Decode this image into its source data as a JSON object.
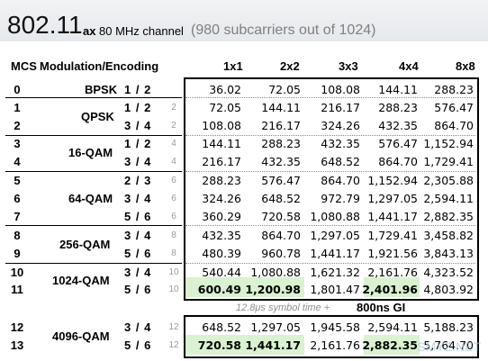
{
  "header": {
    "main": "802.11",
    "suffix": "ax",
    "channel_label": "80 MHz channel",
    "subcarriers": "(980 subcarriers out of 1024)"
  },
  "table": {
    "mcs_col": "MCS",
    "modulation_col": "Modulation/Encoding",
    "stream_cols": [
      "1x1",
      "2x2",
      "3x3",
      "4x4",
      "8x8"
    ],
    "rows": [
      {
        "mcs": "0",
        "modulation": "BPSK",
        "rate": "1 / 2",
        "grey": "",
        "values": [
          "36.02",
          "72.05",
          "108.08",
          "144.11",
          "288.23"
        ]
      },
      {
        "mcs": "1",
        "modulation": "QPSK",
        "rate": "1 / 2",
        "grey": "2",
        "values": [
          "72.05",
          "144.11",
          "216.17",
          "288.23",
          "576.47"
        ]
      },
      {
        "mcs": "2",
        "modulation": "",
        "rate": "3 / 4",
        "grey": "2",
        "values": [
          "108.08",
          "216.17",
          "324.26",
          "432.35",
          "864.70"
        ]
      },
      {
        "mcs": "3",
        "modulation": "16-QAM",
        "rate": "1 / 2",
        "grey": "4",
        "values": [
          "144.11",
          "288.23",
          "432.35",
          "576.47",
          "1,152.94"
        ]
      },
      {
        "mcs": "4",
        "modulation": "",
        "rate": "3 / 4",
        "grey": "4",
        "values": [
          "216.17",
          "432.35",
          "648.52",
          "864.70",
          "1,729.41"
        ]
      },
      {
        "mcs": "5",
        "modulation": "64-QAM",
        "rate": "2 / 3",
        "grey": "6",
        "values": [
          "288.23",
          "576.47",
          "864.70",
          "1,152.94",
          "2,305.88"
        ]
      },
      {
        "mcs": "6",
        "modulation": "",
        "rate": "3 / 4",
        "grey": "6",
        "values": [
          "324.26",
          "648.52",
          "972.79",
          "1,297.05",
          "2,594.11"
        ]
      },
      {
        "mcs": "7",
        "modulation": "",
        "rate": "5 / 6",
        "grey": "6",
        "values": [
          "360.29",
          "720.58",
          "1,080.88",
          "1,441.17",
          "2,882.35"
        ]
      },
      {
        "mcs": "8",
        "modulation": "256-QAM",
        "rate": "3 / 4",
        "grey": "8",
        "values": [
          "432.35",
          "864.70",
          "1,297.05",
          "1,729.41",
          "3,458.82"
        ]
      },
      {
        "mcs": "9",
        "modulation": "",
        "rate": "5 / 6",
        "grey": "8",
        "values": [
          "480.39",
          "960.78",
          "1,441.17",
          "1,921.56",
          "3,843.13"
        ]
      },
      {
        "mcs": "10",
        "modulation": "1024-QAM",
        "rate": "3 / 4",
        "grey": "10",
        "values": [
          "540.44",
          "1,080.88",
          "1,621.32",
          "2,161.76",
          "4,323.52"
        ]
      },
      {
        "mcs": "11",
        "modulation": "",
        "rate": "5 / 6",
        "grey": "10",
        "values": [
          "600.49",
          "1,200.98",
          "1,801.47",
          "2,401.96",
          "4,803.92"
        ]
      }
    ],
    "gi_note": "12.8μs symbol time +",
    "gi_bold": "800ns GI",
    "rows_4096": [
      {
        "mcs": "12",
        "modulation": "4096-QAM",
        "rate": "3 / 4",
        "grey": "12",
        "values": [
          "648.52",
          "1,297.05",
          "1,945.58",
          "2,594.11",
          "5,188.23"
        ]
      },
      {
        "mcs": "13",
        "modulation": "",
        "rate": "5 / 6",
        "grey": "12",
        "values": [
          "720.58",
          "1,441.17",
          "2,161.76",
          "2,882.35",
          "5,764.70"
        ]
      }
    ]
  },
  "watermark": "SMYZ.NET",
  "colors": {
    "highlight": "#d9f2d0"
  }
}
